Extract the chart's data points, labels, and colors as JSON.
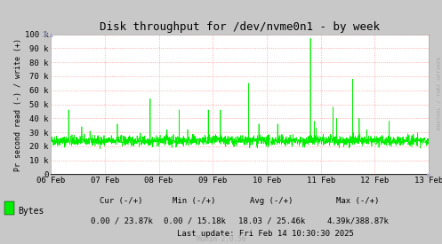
{
  "title": "Disk throughput for /dev/nvme0n1 - by week",
  "ylabel": "Pr second read (-) / write (+)",
  "watermark": "RRDTOOL / TOBI OETIKER",
  "munin_version": "Munin 2.0.56",
  "legend_label": "Bytes",
  "cur_text": "Cur (-/+)",
  "min_text": "Min (-/+)",
  "avg_text": "Avg (-/+)",
  "max_text": "Max (-/+)",
  "cur_val": "0.00 / 23.87k",
  "min_val": "0.00 / 15.18k",
  "avg_val": "18.03 / 25.46k",
  "max_val": "4.39k/388.87k",
  "last_update": "Last update: Fri Feb 14 10:30:30 2025",
  "bg_color": "#c8c8c8",
  "plot_bg_color": "#ffffff",
  "grid_color": "#ff9999",
  "line_color": "#00ee00",
  "ylim": [
    0,
    100000
  ],
  "ytick_values": [
    0,
    10000,
    20000,
    30000,
    40000,
    50000,
    60000,
    70000,
    80000,
    90000,
    100000
  ],
  "ytick_labels": [
    "0",
    "10 k",
    "20 k",
    "30 k",
    "40 k",
    "50 k",
    "60 k",
    "70 k",
    "80 k",
    "90 k",
    "100 k"
  ],
  "xstart": 0,
  "xend": 2016,
  "xtick_positions": [
    0,
    288,
    576,
    864,
    1152,
    1440,
    1728,
    2016
  ],
  "xtick_labels": [
    "06 Feb",
    "07 Feb",
    "08 Feb",
    "09 Feb",
    "10 Feb",
    "11 Feb",
    "12 Feb",
    "13 Feb"
  ]
}
